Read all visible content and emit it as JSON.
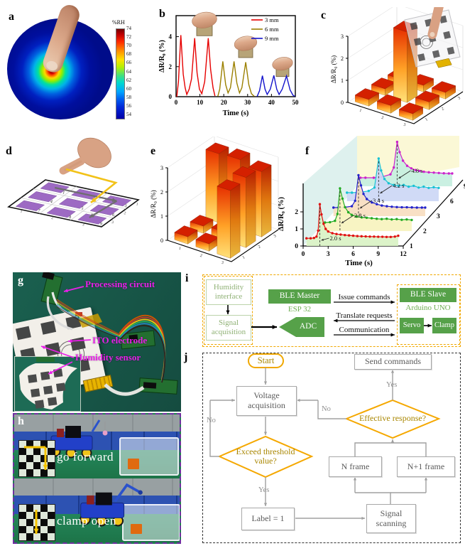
{
  "figure_labels": {
    "a": "a",
    "b": "b",
    "c": "c",
    "d": "d",
    "e": "e",
    "f": "f",
    "g": "g",
    "h": "h",
    "i": "i",
    "j": "j"
  },
  "panel_a": {
    "colorbar_title": "%RH",
    "colorbar_ticks": [
      74,
      72,
      70,
      68,
      66,
      64,
      62,
      60,
      58,
      56,
      54
    ]
  },
  "panel_d": {
    "cell_numbers": [
      "1",
      "2",
      "3",
      "4",
      "5",
      "6",
      "7",
      "8",
      "9"
    ],
    "edge_numbers": [
      "1",
      "2",
      "3"
    ]
  },
  "panel_g": {
    "labels": [
      "Processing circuit",
      "ITO electrode",
      "Humidity sensor"
    ]
  },
  "panel_h": {
    "captions": [
      "go forward",
      "clamp open"
    ]
  },
  "panel_i": {
    "humidity_interface": "Humidity interface",
    "signal_acquisition": "Signal acquisition",
    "ble_master": "BLE Master",
    "esp32": "ESP 32",
    "adc": "ADC",
    "issue_commands": "Issue commands",
    "translate_requests": "Translate requests",
    "communication": "Communication",
    "ble_slave": "BLE Slave",
    "arduino_uno": "Arduino UNO",
    "servo": "Servo",
    "clamp": "Clamp"
  },
  "panel_j": {
    "start": "Start",
    "voltage_acquisition": "Voltage acquisition",
    "exceed_threshold": "Exceed threshold value?",
    "label_1": "Label = 1",
    "signal_scanning": "Signal scanning",
    "n_frame": "N frame",
    "n1_frame": "N+1 frame",
    "effective_response": "Effective response?",
    "send_commands": "Send commands",
    "yes_bottom": "Yes",
    "no_left": "No",
    "yes_top": "Yes",
    "no_mid": "No"
  },
  "chart_data": [
    {
      "panel": "a",
      "type": "heatmap",
      "title": "%RH",
      "colorbar_ticks": [
        74,
        72,
        70,
        68,
        66,
        64,
        62,
        60,
        58,
        56,
        54
      ],
      "value_range": [
        54,
        74
      ],
      "center_value": 74,
      "edge_value": 54
    },
    {
      "panel": "b",
      "type": "line",
      "xlabel": "Time (s)",
      "ylabel": "ΔR/R₀ (%)",
      "xlim": [
        0,
        50
      ],
      "ylim": [
        0,
        5.4
      ],
      "xticks": [
        0,
        10,
        20,
        30,
        40,
        50
      ],
      "yticks": [
        0,
        2,
        4
      ],
      "legend_position": "top-right",
      "series": [
        {
          "name": "3 mm",
          "color": "#e60000",
          "points": [
            [
              0.3,
              0
            ],
            [
              1,
              1.0
            ],
            [
              2,
              4.1
            ],
            [
              3,
              1.5
            ],
            [
              3.8,
              0.6
            ],
            [
              4.5,
              0.15
            ],
            [
              5.5,
              0.5
            ],
            [
              6.5,
              1.2
            ],
            [
              7.8,
              3.9
            ],
            [
              8.8,
              1.6
            ],
            [
              9.8,
              0.5
            ],
            [
              10.8,
              0.2
            ],
            [
              12,
              1.0
            ],
            [
              13.5,
              3.9
            ],
            [
              14.5,
              1.8
            ],
            [
              15.5,
              0.6
            ],
            [
              16.3,
              0.05
            ]
          ]
        },
        {
          "name": "6 mm",
          "color": "#9b8000",
          "points": [
            [
              17.5,
              0.02
            ],
            [
              18.3,
              0.5
            ],
            [
              19.6,
              2.35
            ],
            [
              20.8,
              0.8
            ],
            [
              21.8,
              0.25
            ],
            [
              22.8,
              0.6
            ],
            [
              24.3,
              2.35
            ],
            [
              25.5,
              0.9
            ],
            [
              26.6,
              0.25
            ],
            [
              27.6,
              0.6
            ],
            [
              29.2,
              2.3
            ],
            [
              30.5,
              0.8
            ],
            [
              31.6,
              0.2
            ],
            [
              32.8,
              0.02
            ]
          ]
        },
        {
          "name": "9 mm",
          "color": "#1414cc",
          "points": [
            [
              34,
              0.02
            ],
            [
              35,
              0.4
            ],
            [
              36.2,
              1.4
            ],
            [
              37.3,
              0.5
            ],
            [
              38.2,
              0.15
            ],
            [
              39.5,
              0.5
            ],
            [
              41,
              1.42
            ],
            [
              42.2,
              0.5
            ],
            [
              43.2,
              0.15
            ],
            [
              44.5,
              0.5
            ],
            [
              46.3,
              1.38
            ],
            [
              47.8,
              0.45
            ],
            [
              49,
              0.1
            ],
            [
              49.8,
              0.02
            ]
          ]
        }
      ]
    },
    {
      "panel": "c",
      "type": "bar3d",
      "zlabel": "ΔR/R₀ (%)",
      "zticks": [
        0,
        1,
        2,
        3
      ],
      "xticks": [
        "1",
        "2",
        "3"
      ],
      "yticks": [
        "1",
        "2",
        "3"
      ],
      "values": [
        [
          0.3,
          0.35,
          0.3
        ],
        [
          0.3,
          3.2,
          0.35
        ],
        [
          0.25,
          0.3,
          0.3
        ]
      ]
    },
    {
      "panel": "e",
      "type": "bar3d",
      "zlabel": "ΔR/R₀ (%)",
      "zticks": [
        0,
        1,
        2,
        3
      ],
      "xticks": [
        "1",
        "2",
        "3"
      ],
      "yticks": [
        "1",
        "2",
        "3"
      ],
      "values": [
        [
          0.3,
          0.3,
          2.8
        ],
        [
          0.3,
          0.35,
          2.9
        ],
        [
          2.85,
          2.9,
          2.7
        ]
      ]
    },
    {
      "panel": "f",
      "type": "line3d-waterfall",
      "xlabel": "Time (s)",
      "ylabel": "ΔR/R₀ (%)",
      "xlim": [
        0,
        12
      ],
      "xticks": [
        0,
        3,
        6,
        9,
        12
      ],
      "yticks": [
        0,
        1,
        2
      ],
      "right_axis_labels": [
        "1",
        "2",
        "3",
        "6",
        "9"
      ],
      "series": [
        {
          "name": "1",
          "color": "#e01010",
          "fill": "#d9f2c4",
          "response_time": "2.0 s",
          "peak_time": 2.0,
          "points": [
            [
              0.4,
              0.45
            ],
            [
              0.9,
              0.45
            ],
            [
              1.3,
              0.47
            ],
            [
              1.6,
              0.55
            ],
            [
              1.8,
              0.9
            ],
            [
              2.0,
              2.45
            ],
            [
              2.2,
              1.85
            ],
            [
              2.45,
              1.3
            ],
            [
              2.7,
              1.0
            ],
            [
              3.0,
              0.85
            ],
            [
              3.5,
              0.75
            ],
            [
              4.0,
              0.7
            ],
            [
              4.5,
              0.67
            ],
            [
              5,
              0.64
            ],
            [
              5.5,
              0.62
            ],
            [
              6,
              0.6
            ],
            [
              6.5,
              0.58
            ],
            [
              7,
              0.57
            ],
            [
              7.5,
              0.56
            ],
            [
              8,
              0.55
            ],
            [
              8.5,
              0.55
            ],
            [
              9,
              0.54
            ],
            [
              9.5,
              0.54
            ],
            [
              10,
              0.53
            ],
            [
              10.5,
              0.53
            ],
            [
              11,
              0.55
            ],
            [
              11.4,
              0.6
            ]
          ]
        },
        {
          "name": "2",
          "color": "#22aa22",
          "fill": "#f7f3be",
          "response_time": "2.8 s",
          "peak_time": 2.8,
          "points": [
            [
              0.4,
              0.5
            ],
            [
              1,
              0.5
            ],
            [
              1.6,
              0.52
            ],
            [
              2.2,
              0.6
            ],
            [
              2.5,
              1.0
            ],
            [
              2.8,
              2.5
            ],
            [
              3.1,
              1.9
            ],
            [
              3.4,
              1.4
            ],
            [
              3.8,
              1.1
            ],
            [
              4.2,
              0.95
            ],
            [
              4.8,
              0.85
            ],
            [
              5.4,
              0.8
            ],
            [
              6,
              0.78
            ],
            [
              6.6,
              0.75
            ],
            [
              7.2,
              0.72
            ],
            [
              7.8,
              0.7
            ],
            [
              8.4,
              0.72
            ],
            [
              9,
              0.68
            ],
            [
              9.6,
              0.7
            ],
            [
              10.2,
              0.66
            ],
            [
              10.8,
              0.68
            ],
            [
              11.4,
              0.65
            ]
          ]
        },
        {
          "name": "3",
          "color": "#2222cc",
          "fill": "#f7ddc0",
          "response_time": "3.4 s",
          "peak_time": 3.4,
          "points": [
            [
              0.4,
              0.5
            ],
            [
              1,
              0.5
            ],
            [
              1.8,
              0.52
            ],
            [
              2.6,
              0.58
            ],
            [
              3.0,
              0.9
            ],
            [
              3.4,
              2.4
            ],
            [
              3.7,
              1.8
            ],
            [
              4.0,
              1.3
            ],
            [
              4.4,
              1.0
            ],
            [
              5,
              0.8
            ],
            [
              5.6,
              0.7
            ],
            [
              6.2,
              0.62
            ],
            [
              6.8,
              0.58
            ],
            [
              7.4,
              0.55
            ],
            [
              8,
              0.53
            ],
            [
              8.6,
              0.52
            ],
            [
              9.2,
              0.52
            ],
            [
              9.8,
              0.51
            ],
            [
              10.4,
              0.5
            ],
            [
              11,
              0.5
            ],
            [
              11.4,
              0.5
            ]
          ]
        },
        {
          "name": "6",
          "color": "#17c2d4",
          "fill": "#ccd7f5",
          "response_time": "4.2 s",
          "peak_time": 4.2,
          "points": [
            [
              0.4,
              0.5
            ],
            [
              1,
              0.5
            ],
            [
              2,
              0.52
            ],
            [
              3,
              0.6
            ],
            [
              3.7,
              0.8
            ],
            [
              4.2,
              2.5
            ],
            [
              4.5,
              1.8
            ],
            [
              4.9,
              1.3
            ],
            [
              5.4,
              1.05
            ],
            [
              6,
              0.95
            ],
            [
              6.6,
              0.9
            ],
            [
              7.2,
              0.95
            ],
            [
              7.8,
              0.85
            ],
            [
              8.4,
              0.9
            ],
            [
              9,
              0.8
            ],
            [
              9.6,
              0.85
            ],
            [
              10.2,
              0.78
            ],
            [
              10.8,
              0.82
            ],
            [
              11.4,
              0.78
            ]
          ]
        },
        {
          "name": "9",
          "color": "#cc22cc",
          "fill": "#c6efe0",
          "response_time": "4.8 s",
          "peak_time": 4.8,
          "points": [
            [
              0.4,
              0.5
            ],
            [
              1,
              0.5
            ],
            [
              2,
              0.5
            ],
            [
              3,
              0.55
            ],
            [
              4,
              0.7
            ],
            [
              4.4,
              1.1
            ],
            [
              4.8,
              2.6
            ],
            [
              5.1,
              2.0
            ],
            [
              5.5,
              1.5
            ],
            [
              6,
              1.2
            ],
            [
              6.5,
              1.05
            ],
            [
              7,
              0.95
            ],
            [
              7.5,
              0.9
            ],
            [
              8,
              0.85
            ],
            [
              8.6,
              0.82
            ],
            [
              9.2,
              0.8
            ],
            [
              9.8,
              0.78
            ],
            [
              10.4,
              0.76
            ],
            [
              11,
              0.75
            ],
            [
              11.4,
              0.75
            ]
          ]
        }
      ]
    }
  ]
}
